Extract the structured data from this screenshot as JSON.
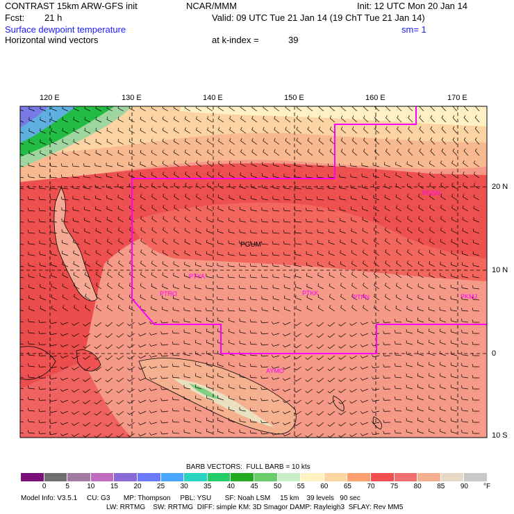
{
  "header": {
    "model_title": "CONTRAST 15km ARW-GFS init",
    "org": "NCAR/MMM",
    "init_time": "Init: 12 UTC Mon 20 Jan 14",
    "forecast_label": "Fcst:",
    "forecast_hours": "21 h",
    "valid_time": "Valid: 09 UTC Tue 21 Jan 14 (19 ChT Tue 21 Jan 14)",
    "field_name": "Surface dewpoint temperature",
    "smoothing": "sm= 1",
    "vector_field": "Horizontal wind vectors",
    "level_label": "at k-index =",
    "level_value": "39"
  },
  "map": {
    "lon_labels": [
      "120 E",
      "130 E",
      "140 E",
      "150 E",
      "160 E",
      "170 E"
    ],
    "lat_labels": [
      "20 N",
      "10 N",
      "0",
      "10 S"
    ],
    "station_labels": [
      "PGUM",
      "PTYA",
      "PTRO",
      "PTKK",
      "PTPN",
      "PKMJ",
      "AYMO",
      "PGSN"
    ],
    "colors": {
      "boundary_line": "#ff00ff",
      "station_text": "#ff00ff",
      "grid_line": "#000000"
    }
  },
  "legend": {
    "barb_note": "BARB VECTORS:  FULL BARB = 10 kts",
    "colorbar_values": [
      "0",
      "5",
      "10",
      "15",
      "20",
      "25",
      "30",
      "35",
      "40",
      "45",
      "50",
      "55",
      "60",
      "65",
      "70",
      "75",
      "80",
      "85",
      "90"
    ],
    "colorbar_colors": [
      "#7a0f7a",
      "#6e6e6e",
      "#a27aa2",
      "#c06ac0",
      "#8a6ad6",
      "#6a7aff",
      "#4aa6ff",
      "#2ad2c0",
      "#22cc66",
      "#22aa22",
      "#6acc6a",
      "#c8eec8",
      "#fff2c0",
      "#fcd6a0",
      "#fca070",
      "#f05050",
      "#f07070",
      "#f5b090",
      "#e8d8c8",
      "#c8c8c8"
    ],
    "units": "°F"
  },
  "footer": {
    "line1": "Model Info: V3.5.1     CU: G3       MP: Thompson     PBL: YSU       SF: Noah LSM     15 km    39 levels   90 sec",
    "line2": "LW: RRTMG    SW: RRTMG  DIFF: simple KM: 3D Smagor DAMP: Rayleigh3  SFLAY: Rev MM5"
  }
}
